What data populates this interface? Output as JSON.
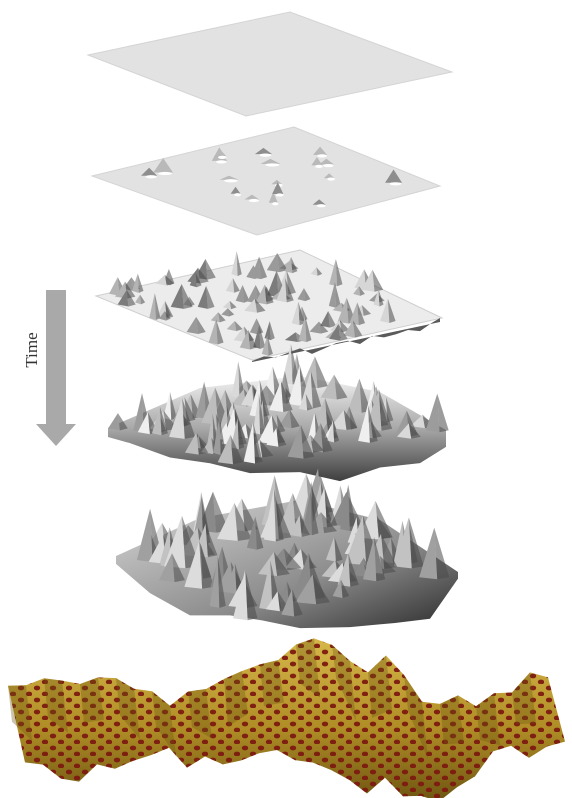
{
  "arrow_label": "Time",
  "colors": {
    "plane_fill": "#e2e2e2",
    "plane_edge": "#d0d0d0",
    "arrow": "#a9a9a9",
    "surface_light": "#eeeeee",
    "surface_mid": "#a8a8a8",
    "surface_dark": "#3c3c3c",
    "final_surface": "#b5952c",
    "final_surface_shade": "#7e6418",
    "spot": "#7d1a10"
  },
  "stages": [
    {
      "name": "flat-plane",
      "roughness": 0
    },
    {
      "name": "few-islands",
      "roughness": 0.1
    },
    {
      "name": "many-islands",
      "roughness": 0.35
    },
    {
      "name": "rough-surface",
      "roughness": 0.6
    },
    {
      "name": "very-rough-surface",
      "roughness": 0.85
    },
    {
      "name": "patterned-surface",
      "roughness": 1
    }
  ]
}
